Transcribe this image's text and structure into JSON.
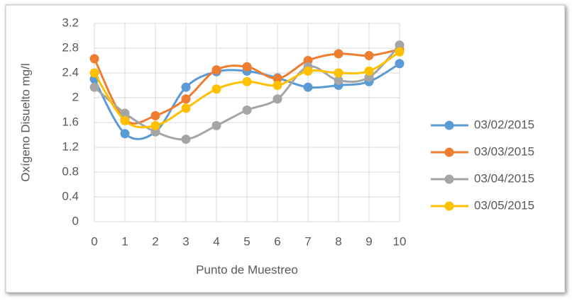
{
  "chart_data": {
    "type": "line",
    "xlabel": "Punto de Muestreo",
    "ylabel": "Oxígeno Disuelto mg/l",
    "x": [
      0,
      1,
      2,
      3,
      4,
      5,
      6,
      7,
      8,
      9,
      10
    ],
    "xlim": [
      0,
      10
    ],
    "xticks": [
      0,
      1,
      2,
      3,
      4,
      5,
      6,
      7,
      8,
      9,
      10
    ],
    "ylim": [
      0,
      3.2
    ],
    "yticks": [
      0,
      0.4,
      0.8,
      1.2,
      1.6,
      2,
      2.4,
      2.8,
      3.2
    ],
    "grid": true,
    "legend": "right",
    "smooth": true,
    "series": [
      {
        "name": "03/02/2015",
        "color": "#5b9bd5",
        "values": [
          2.3,
          1.42,
          1.45,
          2.17,
          2.42,
          2.43,
          2.32,
          2.17,
          2.2,
          2.26,
          2.55
        ]
      },
      {
        "name": "03/03/2015",
        "color": "#ed7d31",
        "values": [
          2.63,
          1.65,
          1.71,
          1.98,
          2.45,
          2.5,
          2.31,
          2.6,
          2.71,
          2.68,
          2.78
        ]
      },
      {
        "name": "03/04/2015",
        "color": "#a5a5a5",
        "values": [
          2.17,
          1.75,
          1.45,
          1.33,
          1.55,
          1.8,
          1.98,
          2.5,
          2.28,
          2.33,
          2.85
        ]
      },
      {
        "name": "03/05/2015",
        "color": "#ffc000",
        "values": [
          2.4,
          1.63,
          1.55,
          1.83,
          2.14,
          2.26,
          2.2,
          2.43,
          2.4,
          2.43,
          2.74
        ]
      }
    ]
  }
}
